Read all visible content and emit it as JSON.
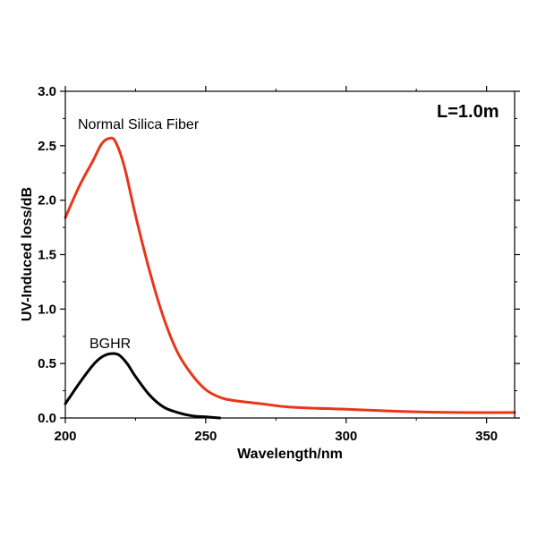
{
  "chart_data": {
    "type": "line",
    "xlabel": "Wavelength/nm",
    "ylabel": "UV-Induced loss/dB",
    "xlim": [
      200,
      360
    ],
    "ylim": [
      0,
      3.0
    ],
    "xticks": [
      200,
      250,
      300,
      350
    ],
    "yticks": [
      0.0,
      0.5,
      1.0,
      1.5,
      2.0,
      2.5,
      3.0
    ],
    "x_tick_labels": [
      "200",
      "250",
      "300",
      "350"
    ],
    "y_tick_labels": [
      "0.0",
      "0.5",
      "1.0",
      "1.5",
      "2.0",
      "2.5",
      "3.0"
    ],
    "grid": false,
    "annotations": {
      "length_label": "L=1.0m"
    },
    "series": [
      {
        "name": "Normal Silica Fiber",
        "color": "#e8361a",
        "x": [
          200,
          205,
          210,
          213,
          216,
          218,
          221,
          225,
          230,
          235,
          240,
          245,
          250,
          255,
          260,
          270,
          280,
          300,
          320,
          340,
          360
        ],
        "y": [
          1.84,
          2.13,
          2.37,
          2.52,
          2.57,
          2.53,
          2.31,
          1.86,
          1.35,
          0.92,
          0.6,
          0.4,
          0.26,
          0.19,
          0.16,
          0.13,
          0.1,
          0.08,
          0.06,
          0.05,
          0.05
        ]
      },
      {
        "name": "BGHR",
        "color": "#000000",
        "x": [
          200,
          205,
          210,
          213,
          216,
          219,
          222,
          225,
          230,
          235,
          240,
          245,
          250,
          255
        ],
        "y": [
          0.13,
          0.32,
          0.49,
          0.56,
          0.59,
          0.58,
          0.5,
          0.38,
          0.21,
          0.1,
          0.05,
          0.02,
          0.01,
          0.0
        ]
      }
    ]
  }
}
